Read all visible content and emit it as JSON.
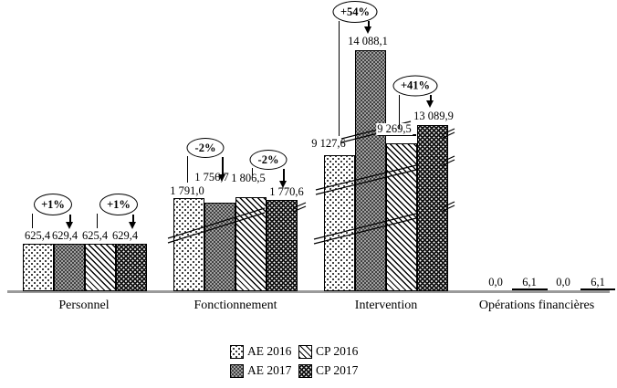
{
  "chart_data": {
    "type": "bar",
    "title": "",
    "categories": [
      "Personnel",
      "Fonctionnement",
      "Intervention",
      "Opérations financières"
    ],
    "series": [
      {
        "name": "AE 2016",
        "pattern": "white-dotted",
        "values": [
          625.4,
          1791.0,
          9127.6,
          0.0
        ],
        "value_labels": [
          "625,4",
          "1 791,0",
          "9 127,6",
          "0,0"
        ]
      },
      {
        "name": "AE 2017",
        "pattern": "gray-dotted",
        "values": [
          629.4,
          1756.7,
          14088.1,
          6.1
        ],
        "value_labels": [
          "629,4",
          "1 756,7",
          "14 088,1",
          "6,1"
        ]
      },
      {
        "name": "CP 2016",
        "pattern": "diagonal-hatched",
        "values": [
          625.4,
          1806.5,
          9269.5,
          0.0
        ],
        "value_labels": [
          "625,4",
          "1 806,5",
          "9 269,5",
          "0,0"
        ]
      },
      {
        "name": "CP 2017",
        "pattern": "black-dotted",
        "values": [
          629.4,
          1770.6,
          13089.9,
          6.1
        ],
        "value_labels": [
          "629,4",
          "1 770,6",
          "13 089,9",
          "6,1"
        ]
      }
    ],
    "annotations": [
      {
        "text": "+1%",
        "category": "Personnel",
        "from_series": "AE 2016",
        "to_series": "AE 2017"
      },
      {
        "text": "+1%",
        "category": "Personnel",
        "from_series": "CP 2016",
        "to_series": "CP 2017"
      },
      {
        "text": "-2%",
        "category": "Fonctionnement",
        "from_series": "AE 2016",
        "to_series": "AE 2017"
      },
      {
        "text": "-2%",
        "category": "Fonctionnement",
        "from_series": "CP 2016",
        "to_series": "CP 2017"
      },
      {
        "text": "+54%",
        "category": "Intervention",
        "from_series": "AE 2016",
        "to_series": "AE 2017"
      },
      {
        "text": "+41%",
        "category": "Intervention",
        "from_series": "CP 2016",
        "to_series": "CP 2017"
      }
    ],
    "legend": {
      "position": "bottom",
      "entries": [
        "AE 2016",
        "CP 2016",
        "AE 2017",
        "CP 2017"
      ]
    },
    "axis": {
      "x_axis_visible": true,
      "y_axis_visible": false,
      "broken_scale": true,
      "number_format": "french-comma-decimal"
    },
    "colors": {
      "bar_gray": "#a0a0a0",
      "bar_black": "#141414",
      "axis_line": "#9a9a9a",
      "text": "#000000"
    }
  }
}
